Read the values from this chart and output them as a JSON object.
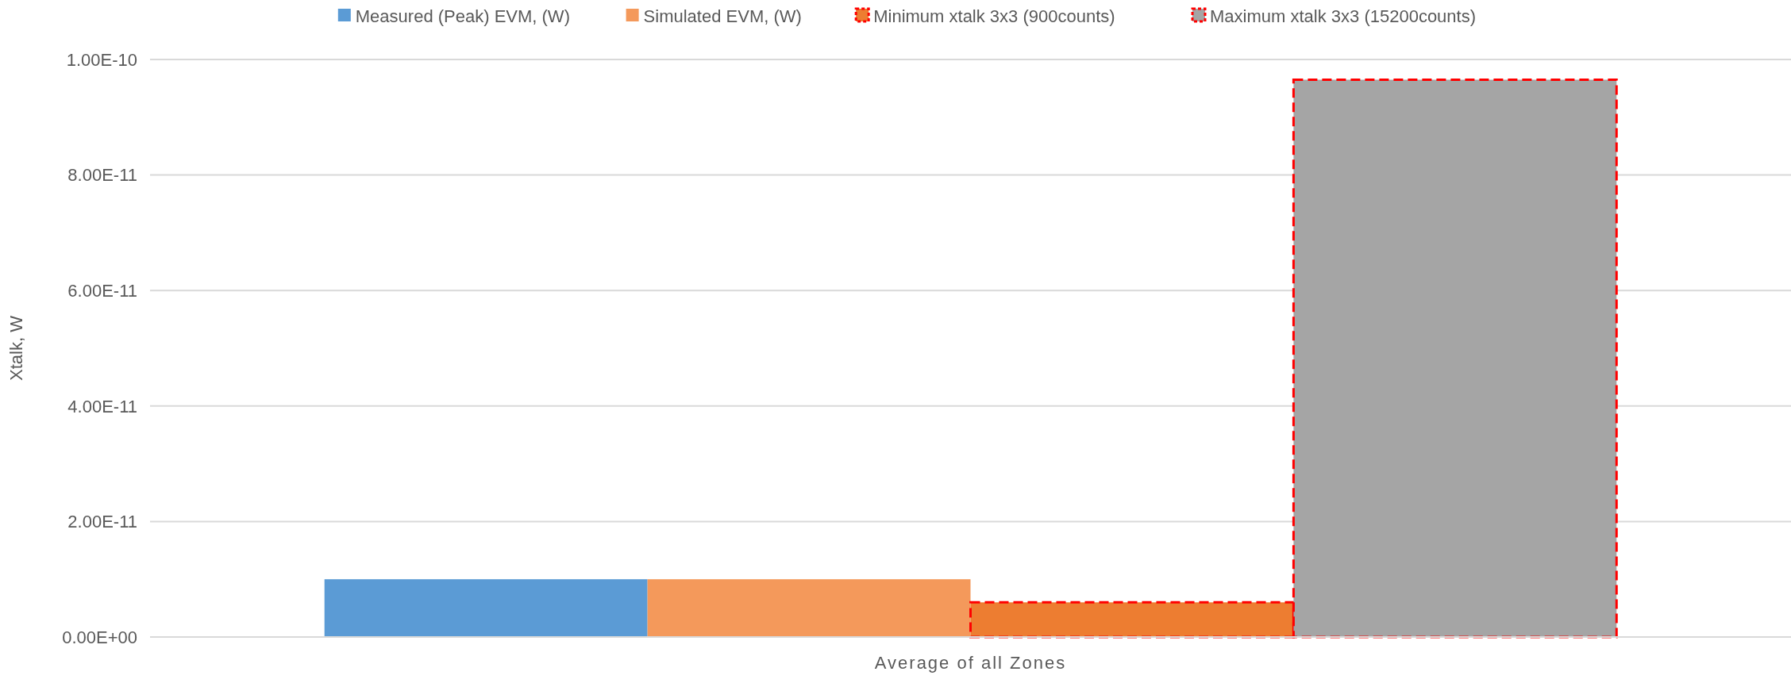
{
  "chart_data": {
    "type": "bar",
    "ylabel": "Xtalk, W",
    "categories": [
      "Average of all Zones"
    ],
    "series": [
      {
        "name": "Measured (Peak) EVM, (W)",
        "color": "#5b9bd5",
        "values": [
          1e-11
        ]
      },
      {
        "name": "Simulated EVM, (W)",
        "color": "#f4995b",
        "values": [
          1e-11
        ]
      },
      {
        "name": "Minimum xtalk 3x3 (900counts)",
        "color": "#ed7d31",
        "values": [
          6e-12
        ],
        "line_style": "dashed"
      },
      {
        "name": "Maximum xtalk 3x3 (15200counts)",
        "color": "#a5a5a5",
        "values": [
          9.65e-11
        ],
        "line_style": "dashed"
      }
    ],
    "ylim": [
      0,
      1e-10
    ],
    "yticks": [
      {
        "value": 0,
        "label": "0.00E+00"
      },
      {
        "value": 2e-11,
        "label": "2.00E-11"
      },
      {
        "value": 4e-11,
        "label": "4.00E-11"
      },
      {
        "value": 6e-11,
        "label": "6.00E-11"
      },
      {
        "value": 8e-11,
        "label": "8.00E-11"
      },
      {
        "value": 1e-10,
        "label": "1.00E-10"
      }
    ],
    "grid": "y",
    "legend": "top"
  }
}
